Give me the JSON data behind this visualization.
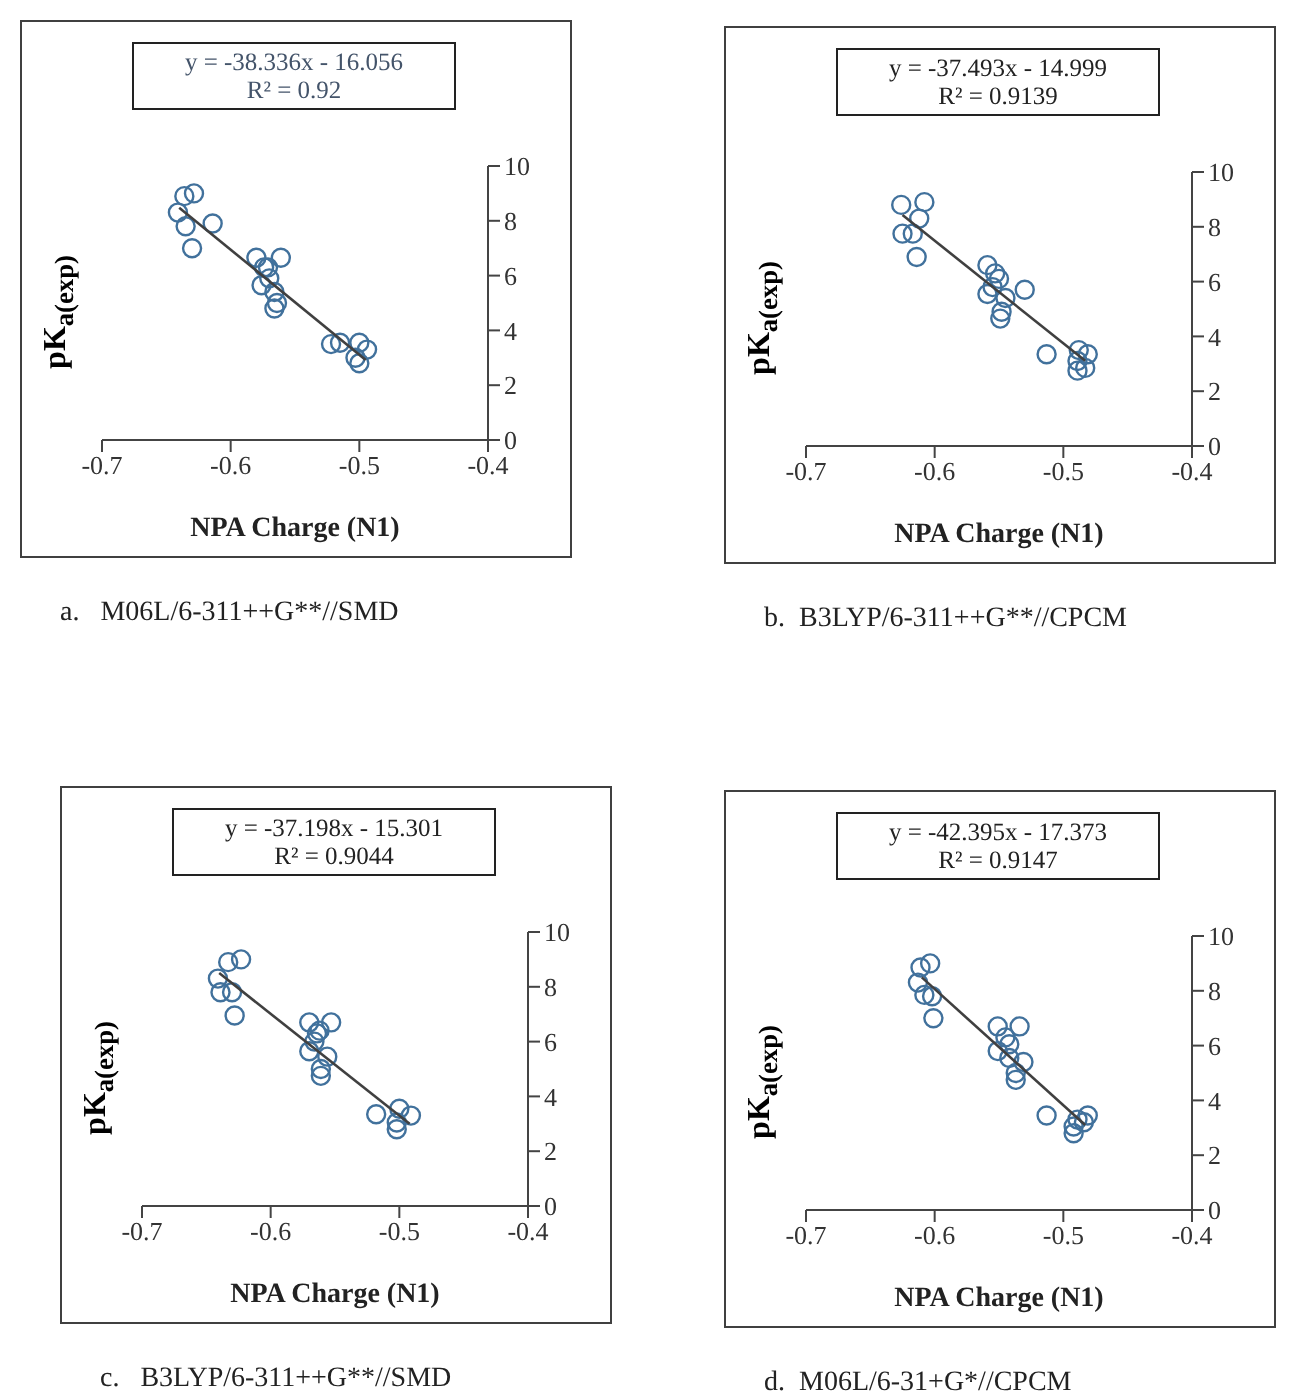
{
  "chart_data": [
    {
      "type": "scatter",
      "xlabel": "NPA Charge (N1)",
      "ylabel": "pK$_{a(exp)}$",
      "annotations": [
        "y = -38.336x - 16.056",
        "R² = 0.92",
        "a.   M06L/6-311++G**//SMD"
      ],
      "xlim": [
        -0.7,
        -0.4
      ],
      "xticks": [
        -0.7,
        -0.6,
        -0.5,
        -0.4
      ],
      "ylim": [
        0,
        10
      ],
      "yticks": [
        0,
        2,
        4,
        6,
        8,
        10
      ],
      "grid": false,
      "legend": false,
      "marker": "circle",
      "series": [
        {
          "color": "#41719c",
          "x": [
            -0.6285,
            -0.636,
            -0.641,
            -0.635,
            -0.63,
            -0.614,
            -0.58,
            -0.574,
            -0.571,
            -0.57,
            -0.576,
            -0.566,
            -0.561,
            -0.564,
            -0.566,
            -0.522,
            -0.515,
            -0.5,
            -0.494,
            -0.503,
            -0.5
          ],
          "values": [
            9.0,
            8.9,
            8.3,
            7.8,
            7.0,
            7.9,
            6.65,
            6.3,
            6.3,
            5.9,
            5.65,
            5.4,
            6.65,
            5.0,
            4.8,
            3.5,
            3.55,
            3.55,
            3.3,
            3.0,
            2.8
          ]
        },
        {
          "type": "line",
          "color": "#404040",
          "marker": "none",
          "x": [
            -0.64,
            -0.495
          ],
          "values": [
            8.48,
            2.92
          ]
        }
      ]
    },
    {
      "type": "scatter",
      "xlabel": "NPA Charge (N1)",
      "ylabel": "pK$_{a(exp)}$",
      "annotations": [
        "y = -37.493x - 14.999",
        "R² = 0.9139",
        "b.  B3LYP/6-311++G**//CPCM"
      ],
      "xlim": [
        -0.7,
        -0.4
      ],
      "xticks": [
        -0.7,
        -0.6,
        -0.5,
        -0.4
      ],
      "ylim": [
        0,
        10
      ],
      "yticks": [
        0,
        2,
        4,
        6,
        8,
        10
      ],
      "grid": false,
      "legend": false,
      "marker": "circle",
      "series": [
        {
          "color": "#41719c",
          "x": [
            -0.626,
            -0.608,
            -0.612,
            -0.625,
            -0.617,
            -0.614,
            -0.559,
            -0.553,
            -0.55,
            -0.555,
            -0.559,
            -0.545,
            -0.53,
            -0.548,
            -0.549,
            -0.513,
            -0.488,
            -0.481,
            -0.489,
            -0.489,
            -0.483
          ],
          "values": [
            8.8,
            8.9,
            8.3,
            7.75,
            7.75,
            6.9,
            6.6,
            6.3,
            6.1,
            5.8,
            5.55,
            5.4,
            5.7,
            4.9,
            4.65,
            3.35,
            3.5,
            3.35,
            3.1,
            2.75,
            2.85
          ]
        },
        {
          "type": "line",
          "color": "#404040",
          "marker": "none",
          "x": [
            -0.625,
            -0.483
          ],
          "values": [
            8.43,
            3.11
          ]
        }
      ]
    },
    {
      "type": "scatter",
      "xlabel": "NPA Charge (N1)",
      "ylabel": "pK$_{a(exp)}$",
      "annotations": [
        "y = -37.198x - 15.301",
        "R² = 0.9044",
        "c.   B3LYP/6-311++G**//SMD"
      ],
      "xlim": [
        -0.7,
        -0.4
      ],
      "xticks": [
        -0.7,
        -0.6,
        -0.5,
        -0.4
      ],
      "ylim": [
        0,
        10
      ],
      "yticks": [
        0,
        2,
        4,
        6,
        8,
        10
      ],
      "grid": false,
      "legend": false,
      "marker": "circle",
      "series": [
        {
          "color": "#41719c",
          "x": [
            -0.623,
            -0.633,
            -0.641,
            -0.639,
            -0.63,
            -0.628,
            -0.57,
            -0.562,
            -0.564,
            -0.566,
            -0.57,
            -0.556,
            -0.553,
            -0.561,
            -0.561,
            -0.518,
            -0.5,
            -0.491,
            -0.502,
            -0.502
          ],
          "values": [
            9.0,
            8.9,
            8.3,
            7.8,
            7.8,
            6.95,
            6.7,
            6.4,
            6.3,
            6.0,
            5.65,
            5.45,
            6.7,
            5.0,
            4.75,
            3.35,
            3.55,
            3.3,
            3.05,
            2.8
          ]
        },
        {
          "type": "line",
          "color": "#404040",
          "marker": "none",
          "x": [
            -0.64,
            -0.492
          ],
          "values": [
            8.5,
            3.0
          ]
        }
      ]
    },
    {
      "type": "scatter",
      "xlabel": "NPA Charge (N1)",
      "ylabel": "pK$_{a(exp)}$",
      "annotations": [
        "y = -42.395x - 17.373",
        "R² = 0.9147",
        "d.  M06L/6-31+G*//CPCM"
      ],
      "xlim": [
        -0.7,
        -0.4
      ],
      "xticks": [
        -0.7,
        -0.6,
        -0.5,
        -0.4
      ],
      "ylim": [
        0,
        10
      ],
      "yticks": [
        0,
        2,
        4,
        6,
        8,
        10
      ],
      "grid": false,
      "legend": false,
      "marker": "circle",
      "series": [
        {
          "color": "#41719c",
          "x": [
            -0.6035,
            -0.611,
            -0.613,
            -0.608,
            -0.602,
            -0.601,
            -0.551,
            -0.534,
            -0.545,
            -0.542,
            -0.551,
            -0.542,
            -0.531,
            -0.537,
            -0.537,
            -0.513,
            -0.489,
            -0.481,
            -0.484,
            -0.492,
            -0.492
          ],
          "values": [
            9.0,
            8.85,
            8.3,
            7.85,
            7.8,
            7.0,
            6.7,
            6.7,
            6.3,
            6.05,
            5.8,
            5.55,
            5.4,
            5.0,
            4.75,
            3.45,
            3.3,
            3.45,
            3.2,
            3.05,
            2.8
          ]
        },
        {
          "type": "line",
          "color": "#404040",
          "marker": "none",
          "x": [
            -0.61,
            -0.483
          ],
          "values": [
            8.49,
            3.1
          ]
        }
      ]
    }
  ]
}
